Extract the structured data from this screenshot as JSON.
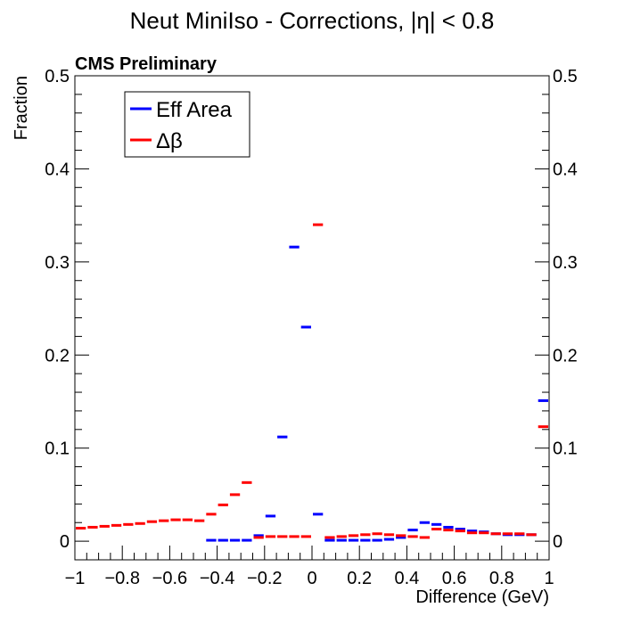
{
  "chart_data": {
    "type": "scatter",
    "title": "Neut MiniIso - Corrections, |η| < 0.8",
    "label": "CMS Preliminary",
    "xlabel": "Difference (GeV)",
    "ylabel": "Fraction",
    "xlim": [
      -1,
      1
    ],
    "ylim": [
      -0.02,
      0.5
    ],
    "xticks": [
      "−1",
      "−0.8",
      "−0.6",
      "−0.4",
      "−0.2",
      "0",
      "0.2",
      "0.4",
      "0.6",
      "0.8",
      "1"
    ],
    "xtick_values": [
      -1,
      -0.8,
      -0.6,
      -0.4,
      -0.2,
      0,
      0.2,
      0.4,
      0.6,
      0.8,
      1
    ],
    "yticks": [
      "0",
      "0.1",
      "0.2",
      "0.3",
      "0.4",
      "0.5"
    ],
    "ytick_values": [
      0,
      0.1,
      0.2,
      0.3,
      0.4,
      0.5
    ],
    "legend_position": "top-left",
    "series": [
      {
        "name": "Eff Area",
        "color": "#0000ff",
        "bins": [
          {
            "x0": -0.45,
            "x1": -0.4,
            "y": 0.001
          },
          {
            "x0": -0.4,
            "x1": -0.35,
            "y": 0.001
          },
          {
            "x0": -0.35,
            "x1": -0.3,
            "y": 0.001
          },
          {
            "x0": -0.3,
            "x1": -0.25,
            "y": 0.001
          },
          {
            "x0": -0.25,
            "x1": -0.2,
            "y": 0.006
          },
          {
            "x0": -0.2,
            "x1": -0.15,
            "y": 0.027
          },
          {
            "x0": -0.15,
            "x1": -0.1,
            "y": 0.112
          },
          {
            "x0": -0.1,
            "x1": -0.05,
            "y": 0.316
          },
          {
            "x0": -0.05,
            "x1": 0.0,
            "y": 0.23
          },
          {
            "x0": 0.0,
            "x1": 0.05,
            "y": 0.029
          },
          {
            "x0": 0.05,
            "x1": 0.1,
            "y": 0.001
          },
          {
            "x0": 0.1,
            "x1": 0.15,
            "y": 0.001
          },
          {
            "x0": 0.15,
            "x1": 0.2,
            "y": 0.001
          },
          {
            "x0": 0.2,
            "x1": 0.25,
            "y": 0.001
          },
          {
            "x0": 0.25,
            "x1": 0.3,
            "y": 0.001
          },
          {
            "x0": 0.3,
            "x1": 0.35,
            "y": 0.002
          },
          {
            "x0": 0.35,
            "x1": 0.4,
            "y": 0.004
          },
          {
            "x0": 0.4,
            "x1": 0.45,
            "y": 0.012
          },
          {
            "x0": 0.45,
            "x1": 0.5,
            "y": 0.02
          },
          {
            "x0": 0.5,
            "x1": 0.55,
            "y": 0.018
          },
          {
            "x0": 0.55,
            "x1": 0.6,
            "y": 0.015
          },
          {
            "x0": 0.6,
            "x1": 0.65,
            "y": 0.013
          },
          {
            "x0": 0.65,
            "x1": 0.7,
            "y": 0.011
          },
          {
            "x0": 0.7,
            "x1": 0.75,
            "y": 0.01
          },
          {
            "x0": 0.75,
            "x1": 0.8,
            "y": 0.008
          },
          {
            "x0": 0.8,
            "x1": 0.85,
            "y": 0.007
          },
          {
            "x0": 0.85,
            "x1": 0.9,
            "y": 0.007
          },
          {
            "x0": 0.9,
            "x1": 0.95,
            "y": 0.007
          },
          {
            "x0": 0.95,
            "x1": 1.0,
            "y": 0.151
          }
        ]
      },
      {
        "name": "Δβ",
        "color": "#ff0000",
        "bins": [
          {
            "x0": -1.0,
            "x1": -0.95,
            "y": 0.014
          },
          {
            "x0": -0.95,
            "x1": -0.9,
            "y": 0.015
          },
          {
            "x0": -0.9,
            "x1": -0.85,
            "y": 0.016
          },
          {
            "x0": -0.85,
            "x1": -0.8,
            "y": 0.017
          },
          {
            "x0": -0.8,
            "x1": -0.75,
            "y": 0.018
          },
          {
            "x0": -0.75,
            "x1": -0.7,
            "y": 0.019
          },
          {
            "x0": -0.7,
            "x1": -0.65,
            "y": 0.021
          },
          {
            "x0": -0.65,
            "x1": -0.6,
            "y": 0.022
          },
          {
            "x0": -0.6,
            "x1": -0.55,
            "y": 0.023
          },
          {
            "x0": -0.55,
            "x1": -0.5,
            "y": 0.023
          },
          {
            "x0": -0.5,
            "x1": -0.45,
            "y": 0.022
          },
          {
            "x0": -0.45,
            "x1": -0.4,
            "y": 0.029
          },
          {
            "x0": -0.4,
            "x1": -0.35,
            "y": 0.039
          },
          {
            "x0": -0.35,
            "x1": -0.3,
            "y": 0.05
          },
          {
            "x0": -0.3,
            "x1": -0.25,
            "y": 0.063
          },
          {
            "x0": -0.25,
            "x1": -0.2,
            "y": 0.004
          },
          {
            "x0": -0.2,
            "x1": -0.15,
            "y": 0.005
          },
          {
            "x0": -0.15,
            "x1": -0.1,
            "y": 0.005
          },
          {
            "x0": -0.1,
            "x1": -0.05,
            "y": 0.005
          },
          {
            "x0": -0.05,
            "x1": 0.0,
            "y": 0.005
          },
          {
            "x0": 0.0,
            "x1": 0.05,
            "y": 0.34
          },
          {
            "x0": 0.05,
            "x1": 0.1,
            "y": 0.004
          },
          {
            "x0": 0.1,
            "x1": 0.15,
            "y": 0.005
          },
          {
            "x0": 0.15,
            "x1": 0.2,
            "y": 0.006
          },
          {
            "x0": 0.2,
            "x1": 0.25,
            "y": 0.007
          },
          {
            "x0": 0.25,
            "x1": 0.3,
            "y": 0.008
          },
          {
            "x0": 0.3,
            "x1": 0.35,
            "y": 0.007
          },
          {
            "x0": 0.35,
            "x1": 0.4,
            "y": 0.006
          },
          {
            "x0": 0.4,
            "x1": 0.45,
            "y": 0.005
          },
          {
            "x0": 0.45,
            "x1": 0.5,
            "y": 0.004
          },
          {
            "x0": 0.5,
            "x1": 0.55,
            "y": 0.013
          },
          {
            "x0": 0.55,
            "x1": 0.6,
            "y": 0.012
          },
          {
            "x0": 0.6,
            "x1": 0.65,
            "y": 0.011
          },
          {
            "x0": 0.65,
            "x1": 0.7,
            "y": 0.009
          },
          {
            "x0": 0.7,
            "x1": 0.75,
            "y": 0.009
          },
          {
            "x0": 0.75,
            "x1": 0.8,
            "y": 0.008
          },
          {
            "x0": 0.8,
            "x1": 0.85,
            "y": 0.008
          },
          {
            "x0": 0.85,
            "x1": 0.9,
            "y": 0.008
          },
          {
            "x0": 0.9,
            "x1": 0.95,
            "y": 0.007
          },
          {
            "x0": 0.95,
            "x1": 1.0,
            "y": 0.123
          }
        ]
      }
    ]
  }
}
